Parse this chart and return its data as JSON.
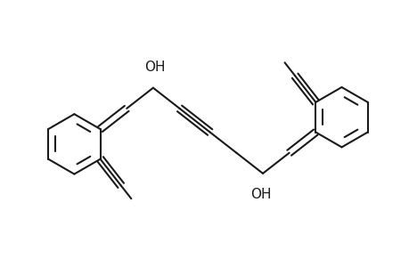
{
  "background_color": "#ffffff",
  "line_color": "#1a1a1a",
  "line_width": 1.5,
  "font_size": 11,
  "figsize": [
    4.6,
    3.0
  ],
  "dpi": 100
}
